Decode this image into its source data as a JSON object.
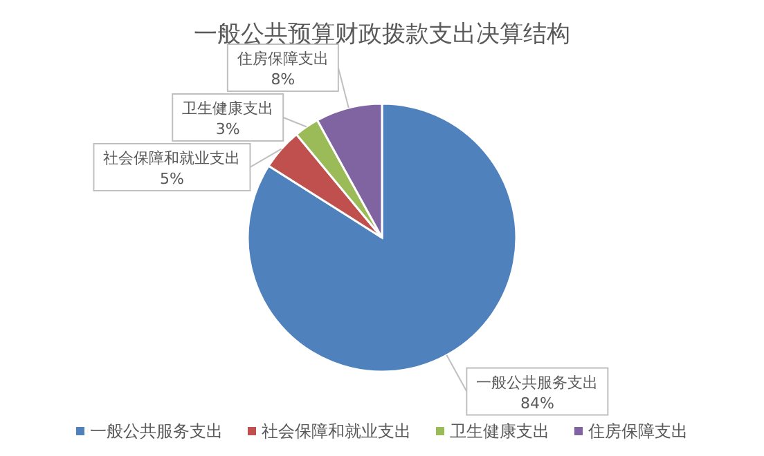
{
  "chart_data": {
    "type": "pie",
    "title": "一般公共预算财政拨款支出决算结构",
    "categories": [
      "一般公共服务支出",
      "社会保障和就业支出",
      "卫生健康支出",
      "住房保障支出"
    ],
    "values": [
      84,
      5,
      3,
      8
    ],
    "value_labels": [
      "84%",
      "5%",
      "3%",
      "8%"
    ],
    "colors": [
      "#4f81bd",
      "#c0504d",
      "#9bbb59",
      "#8064a2"
    ],
    "legend": "bottom"
  }
}
